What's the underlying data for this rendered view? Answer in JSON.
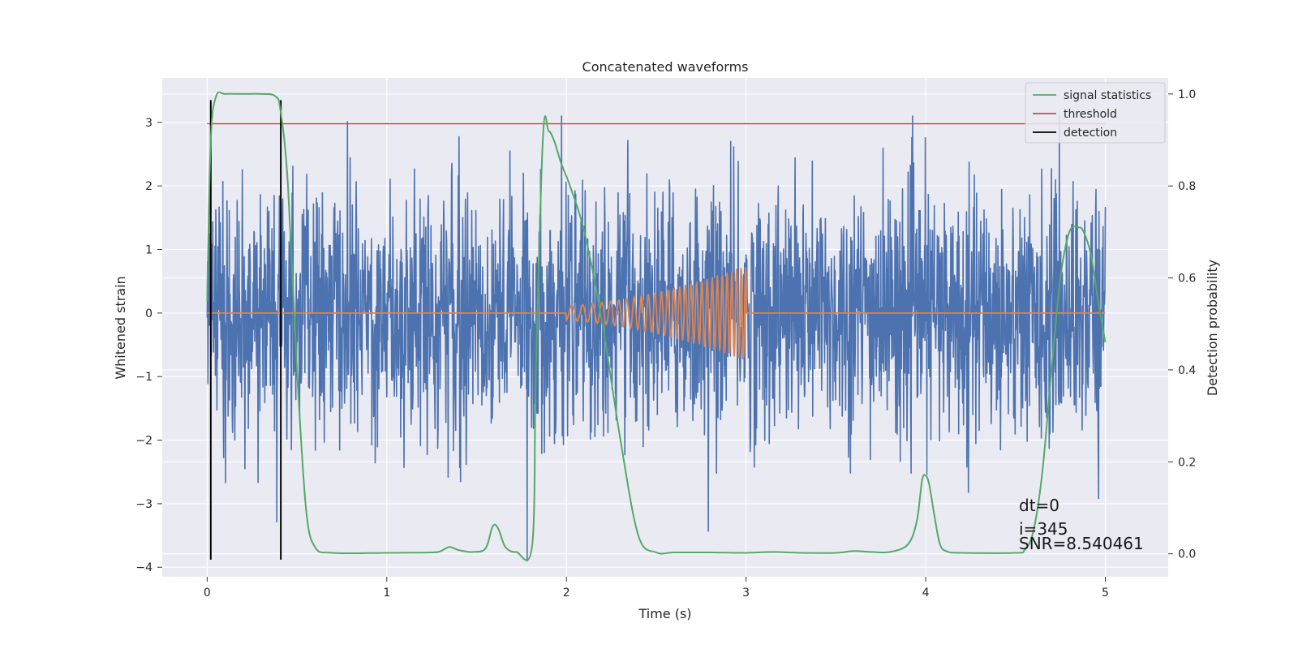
{
  "colors": {
    "background": "#eaeaf2",
    "grid": "#ffffff",
    "noise": "#4c72b0",
    "template": "#dd8452",
    "signal_statistics": "#55a868",
    "threshold": "#c44e52",
    "detection": "#000000"
  },
  "chart_data": {
    "type": "line",
    "title": "Concatenated waveforms",
    "xlabel": "Time (s)",
    "ylabel": "Whitened strain",
    "y2label": "Detection probability",
    "xlim": [
      -0.25,
      5.35
    ],
    "ylim": [
      -4.15,
      3.7
    ],
    "y2lim": [
      -0.05,
      1.035
    ],
    "xticks": [
      0,
      1,
      2,
      3,
      4,
      5
    ],
    "yticks": [
      -4,
      -3,
      -2,
      -1,
      0,
      1,
      2,
      3
    ],
    "y2ticks": [
      0.0,
      0.2,
      0.4,
      0.6,
      0.8,
      1.0
    ],
    "xtick_labels": [
      "0",
      "1",
      "2",
      "3",
      "4",
      "5"
    ],
    "ytick_labels": [
      "−4",
      "−3",
      "−2",
      "−1",
      "0",
      "1",
      "2",
      "3"
    ],
    "y2tick_labels": [
      "0.0",
      "0.2",
      "0.4",
      "0.6",
      "0.8",
      "1.0"
    ],
    "legend": {
      "position": "top-right",
      "entries": [
        "signal statistics",
        "threshold",
        "detection"
      ]
    },
    "series": [
      {
        "name": "whitened strain",
        "axis": "left",
        "description_only": false,
        "x_range": [
          0,
          5
        ],
        "amplitude_std": 1.0,
        "max": 3.1,
        "min": -3.9
      },
      {
        "name": "injected template",
        "axis": "left",
        "x_range": [
          2,
          3
        ],
        "start_amplitude": 0.12,
        "end_amplitude": 0.75,
        "start_frequency_hz": 15,
        "end_frequency_hz": 40
      },
      {
        "name": "signal statistics",
        "axis": "right",
        "x": [
          0.0,
          0.02,
          0.05,
          0.1,
          0.2,
          0.3,
          0.38,
          0.41,
          0.45,
          0.5,
          0.55,
          0.6,
          0.7,
          1.0,
          1.25,
          1.3,
          1.35,
          1.4,
          1.48,
          1.55,
          1.59,
          1.62,
          1.66,
          1.72,
          1.81,
          1.83,
          1.87,
          1.9,
          1.93,
          1.97,
          2.02,
          2.1,
          2.2,
          2.3,
          2.4,
          2.5,
          2.6,
          2.8,
          3.0,
          3.15,
          3.3,
          3.5,
          3.6,
          3.7,
          3.8,
          3.9,
          3.95,
          3.98,
          4.0,
          4.02,
          4.05,
          4.08,
          4.12,
          4.2,
          4.5,
          4.55,
          4.6,
          4.65,
          4.7,
          4.75,
          4.8,
          4.85,
          4.88,
          4.92,
          4.96,
          5.0
        ],
        "y": [
          0.55,
          0.9,
          0.995,
          1.0,
          1.0,
          1.0,
          0.995,
          0.96,
          0.8,
          0.4,
          0.1,
          0.015,
          0.002,
          0.002,
          0.003,
          0.006,
          0.015,
          0.008,
          0.004,
          0.012,
          0.06,
          0.055,
          0.015,
          0.004,
          0.02,
          0.4,
          0.91,
          0.92,
          0.9,
          0.85,
          0.8,
          0.7,
          0.5,
          0.25,
          0.04,
          0.003,
          0.003,
          0.003,
          0.002,
          0.004,
          0.002,
          0.002,
          0.006,
          0.004,
          0.004,
          0.02,
          0.07,
          0.16,
          0.17,
          0.15,
          0.08,
          0.02,
          0.005,
          0.002,
          0.002,
          0.008,
          0.05,
          0.18,
          0.4,
          0.6,
          0.7,
          0.71,
          0.7,
          0.65,
          0.55,
          0.46
        ]
      },
      {
        "name": "threshold",
        "axis": "left",
        "x": [
          0,
          5
        ],
        "y": [
          2.98,
          2.98
        ]
      },
      {
        "name": "detection",
        "axis": "left",
        "x": [
          0.02,
          0.41
        ],
        "y_range": [
          -3.88,
          3.35
        ]
      }
    ],
    "annotations": [
      "dt=0",
      "i=345",
      "SNR=8.540461"
    ]
  }
}
